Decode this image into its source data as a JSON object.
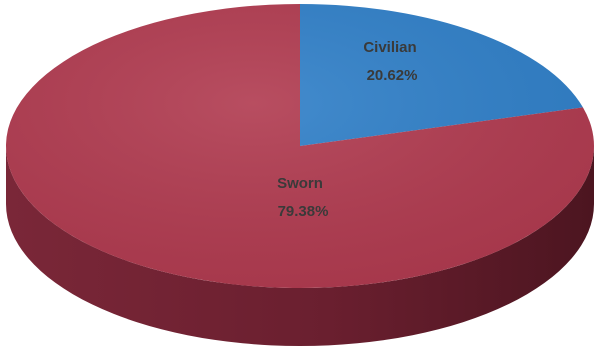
{
  "chart_data": {
    "type": "pie",
    "title": "",
    "slices": [
      {
        "label": "Civilian",
        "value_label": "20.62%",
        "value": 20.62,
        "color": "#2f7fc8"
      },
      {
        "label": "Sworn",
        "value_label": "79.38%",
        "value": 79.38,
        "color": "#b03a4f"
      }
    ],
    "side_color": "#6e2232",
    "start_angle_deg": -90,
    "direction": "clockwise",
    "legend": "none"
  }
}
